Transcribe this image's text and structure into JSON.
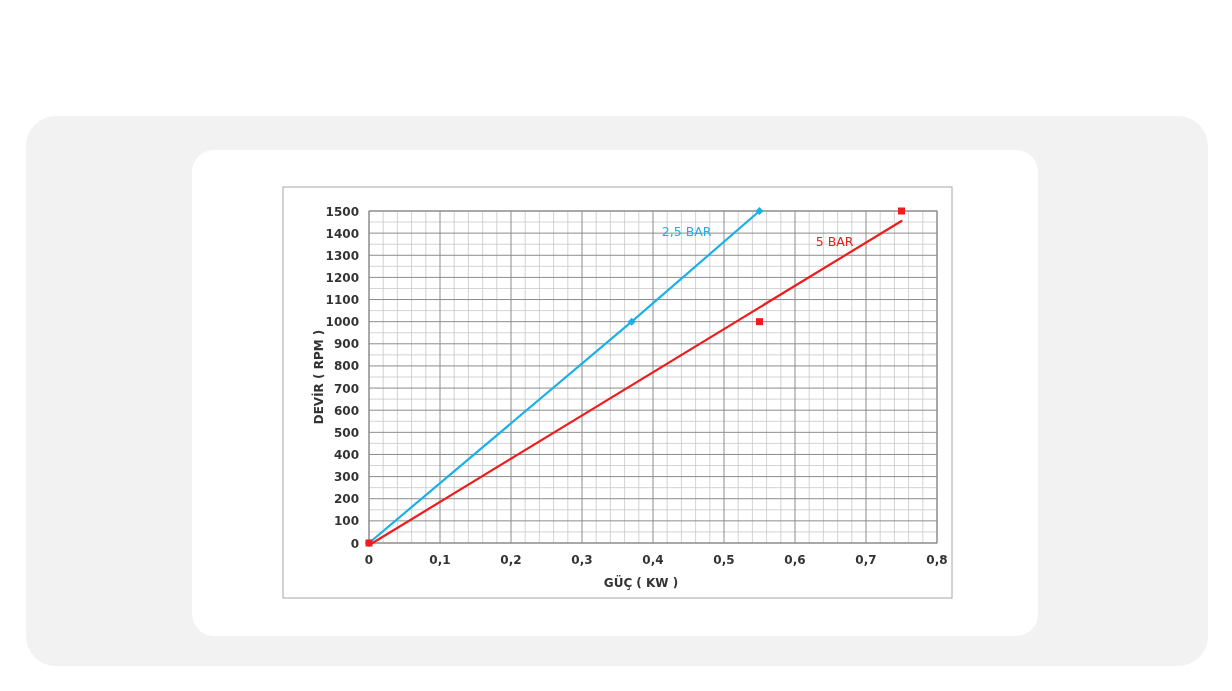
{
  "chart_data": {
    "type": "line",
    "xlabel": "GÜÇ ( KW )",
    "ylabel": "DEVİR ( RPM )",
    "xlim": [
      0,
      0.8
    ],
    "xticks": [
      {
        "value": 0,
        "label": "0"
      },
      {
        "value": 0.1,
        "label": "0,1"
      },
      {
        "value": 0.2,
        "label": "0,2"
      },
      {
        "value": 0.3,
        "label": "0,3"
      },
      {
        "value": 0.4,
        "label": "0,4"
      },
      {
        "value": 0.5,
        "label": "0,5"
      },
      {
        "value": 0.6,
        "label": "0,6"
      },
      {
        "value": 0.7,
        "label": "0,7"
      },
      {
        "value": 0.8,
        "label": "0,8"
      }
    ],
    "ylim": [
      0,
      1500
    ],
    "yticks": [
      0,
      100,
      200,
      300,
      400,
      500,
      600,
      700,
      800,
      900,
      1000,
      1100,
      1200,
      1300,
      1400,
      1500
    ],
    "grid": true,
    "series": [
      {
        "name": "2,5 BAR",
        "color": "#1ab0e8",
        "x": [
          0,
          0.37,
          0.55
        ],
        "values": [
          0,
          1000,
          1500
        ],
        "marker": "diamond"
      },
      {
        "type": "scatter",
        "color": "#ee1c1c",
        "x": [
          0,
          0.55,
          0.75
        ],
        "values": [
          0,
          1000,
          1500
        ],
        "marker": "square"
      },
      {
        "name": "5 BAR",
        "color": "#ee1c1c",
        "x": [
          0.005,
          0.75
        ],
        "values": [
          0,
          1455
        ],
        "marker": "none"
      }
    ]
  }
}
